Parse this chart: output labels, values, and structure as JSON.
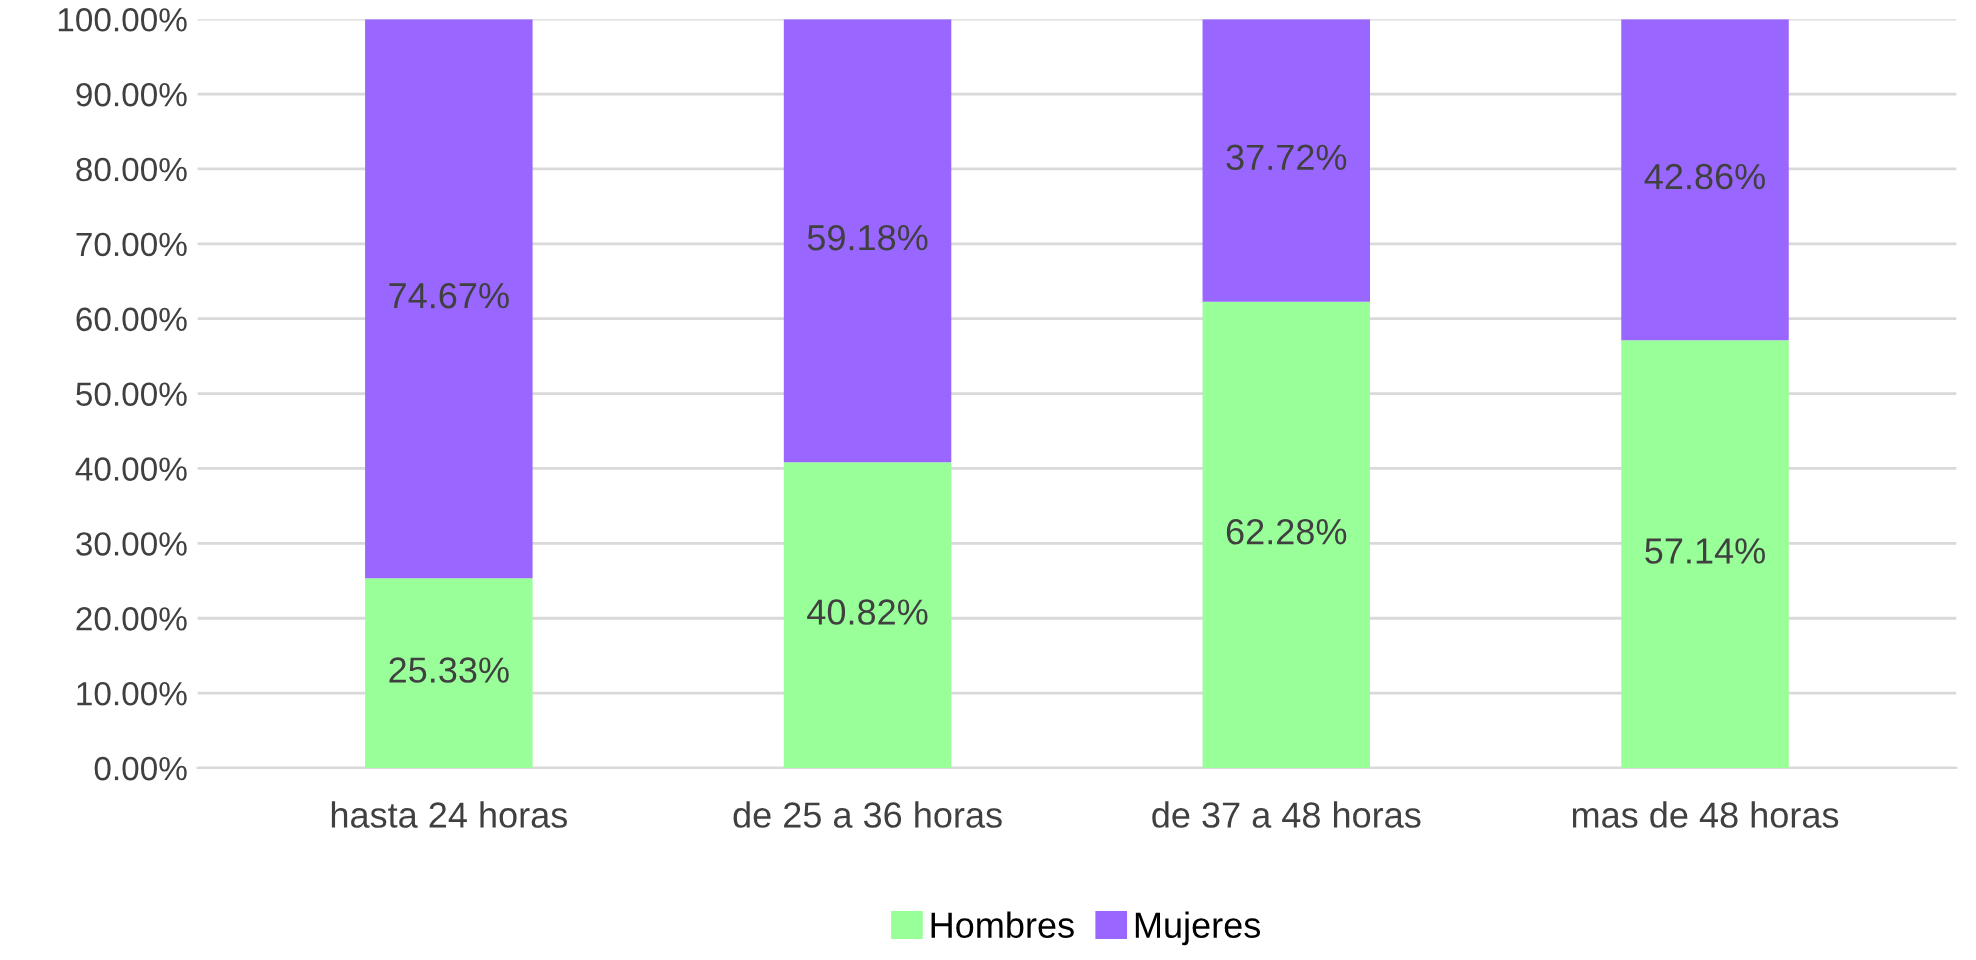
{
  "chart_data": {
    "type": "bar",
    "stacked": true,
    "categories": [
      "hasta 24 horas",
      "de 25 a 36 horas",
      "de 37 a 48 horas",
      "mas de 48 horas"
    ],
    "series": [
      {
        "name": "Hombres",
        "color": "#99ff99",
        "values": [
          25.33,
          40.82,
          62.28,
          57.14
        ],
        "value_labels": [
          "25.33%",
          "40.82%",
          "62.28%",
          "57.14%"
        ]
      },
      {
        "name": "Mujeres",
        "color": "#9966ff",
        "values": [
          74.67,
          59.18,
          37.72,
          42.86
        ],
        "value_labels": [
          "74.67%",
          "59.18%",
          "37.72%",
          "42.86%"
        ]
      }
    ],
    "ylim": [
      0,
      100
    ],
    "yticks": [
      {
        "value": 0,
        "label": "0.00%"
      },
      {
        "value": 10,
        "label": "10.00%"
      },
      {
        "value": 20,
        "label": "20.00%"
      },
      {
        "value": 30,
        "label": "30.00%"
      },
      {
        "value": 40,
        "label": "40.00%"
      },
      {
        "value": 50,
        "label": "50.00%"
      },
      {
        "value": 60,
        "label": "60.00%"
      },
      {
        "value": 70,
        "label": "70.00%"
      },
      {
        "value": 80,
        "label": "80.00%"
      },
      {
        "value": 90,
        "label": "90.00%"
      },
      {
        "value": 100,
        "label": "100.00%"
      }
    ],
    "grid": "y",
    "legend": "bottom"
  }
}
